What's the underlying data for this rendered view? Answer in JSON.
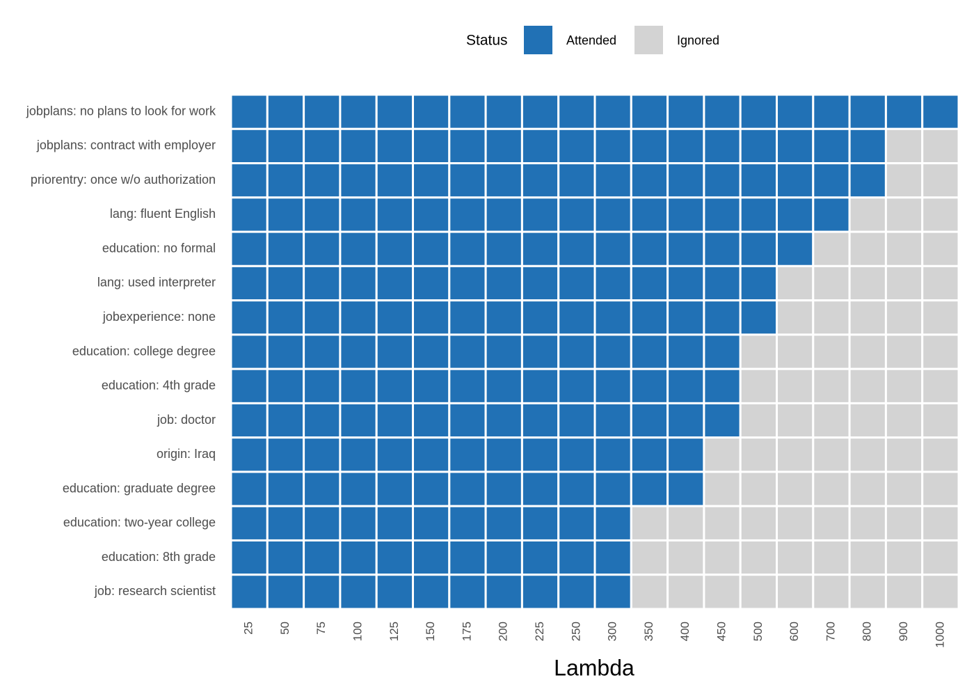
{
  "chart_data": {
    "type": "heatmap",
    "x_label": "Lambda",
    "legend_title": "Status",
    "levels": [
      {
        "name": "Attended",
        "color": "#2171b5"
      },
      {
        "name": "Ignored",
        "color": "#d3d3d3"
      }
    ],
    "columns": [
      25,
      50,
      75,
      100,
      125,
      150,
      175,
      200,
      225,
      250,
      300,
      350,
      400,
      450,
      500,
      600,
      700,
      800,
      900,
      1000
    ],
    "rows": [
      "jobplans: no plans to look for work",
      "jobplans: contract with employer",
      "priorentry: once w/o authorization",
      "lang: fluent English",
      "education: no formal",
      "lang: used interpreter",
      "jobexperience: none",
      "education: college degree",
      "education: 4th grade",
      "job: doctor",
      "origin: Iraq",
      "education: graduate degree",
      "education: two-year college",
      "education: 8th grade",
      "job: research scientist"
    ],
    "values": [
      [
        0,
        0,
        0,
        0,
        0,
        0,
        0,
        0,
        0,
        0,
        0,
        0,
        0,
        0,
        0,
        0,
        0,
        0,
        0,
        0
      ],
      [
        0,
        0,
        0,
        0,
        0,
        0,
        0,
        0,
        0,
        0,
        0,
        0,
        0,
        0,
        0,
        0,
        0,
        0,
        1,
        1
      ],
      [
        0,
        0,
        0,
        0,
        0,
        0,
        0,
        0,
        0,
        0,
        0,
        0,
        0,
        0,
        0,
        0,
        0,
        0,
        1,
        1
      ],
      [
        0,
        0,
        0,
        0,
        0,
        0,
        0,
        0,
        0,
        0,
        0,
        0,
        0,
        0,
        0,
        0,
        0,
        1,
        1,
        1
      ],
      [
        0,
        0,
        0,
        0,
        0,
        0,
        0,
        0,
        0,
        0,
        0,
        0,
        0,
        0,
        0,
        0,
        1,
        1,
        1,
        1
      ],
      [
        0,
        0,
        0,
        0,
        0,
        0,
        0,
        0,
        0,
        0,
        0,
        0,
        0,
        0,
        0,
        1,
        1,
        1,
        1,
        1
      ],
      [
        0,
        0,
        0,
        0,
        0,
        0,
        0,
        0,
        0,
        0,
        0,
        0,
        0,
        0,
        0,
        1,
        1,
        1,
        1,
        1
      ],
      [
        0,
        0,
        0,
        0,
        0,
        0,
        0,
        0,
        0,
        0,
        0,
        0,
        0,
        0,
        1,
        1,
        1,
        1,
        1,
        1
      ],
      [
        0,
        0,
        0,
        0,
        0,
        0,
        0,
        0,
        0,
        0,
        0,
        0,
        0,
        0,
        1,
        1,
        1,
        1,
        1,
        1
      ],
      [
        0,
        0,
        0,
        0,
        0,
        0,
        0,
        0,
        0,
        0,
        0,
        0,
        0,
        0,
        1,
        1,
        1,
        1,
        1,
        1
      ],
      [
        0,
        0,
        0,
        0,
        0,
        0,
        0,
        0,
        0,
        0,
        0,
        0,
        0,
        1,
        1,
        1,
        1,
        1,
        1,
        1
      ],
      [
        0,
        0,
        0,
        0,
        0,
        0,
        0,
        0,
        0,
        0,
        0,
        0,
        0,
        1,
        1,
        1,
        1,
        1,
        1,
        1
      ],
      [
        0,
        0,
        0,
        0,
        0,
        0,
        0,
        0,
        0,
        0,
        0,
        1,
        1,
        1,
        1,
        1,
        1,
        1,
        1,
        1
      ],
      [
        0,
        0,
        0,
        0,
        0,
        0,
        0,
        0,
        0,
        0,
        0,
        1,
        1,
        1,
        1,
        1,
        1,
        1,
        1,
        1
      ],
      [
        0,
        0,
        0,
        0,
        0,
        0,
        0,
        0,
        0,
        0,
        0,
        1,
        1,
        1,
        1,
        1,
        1,
        1,
        1,
        1
      ]
    ]
  }
}
